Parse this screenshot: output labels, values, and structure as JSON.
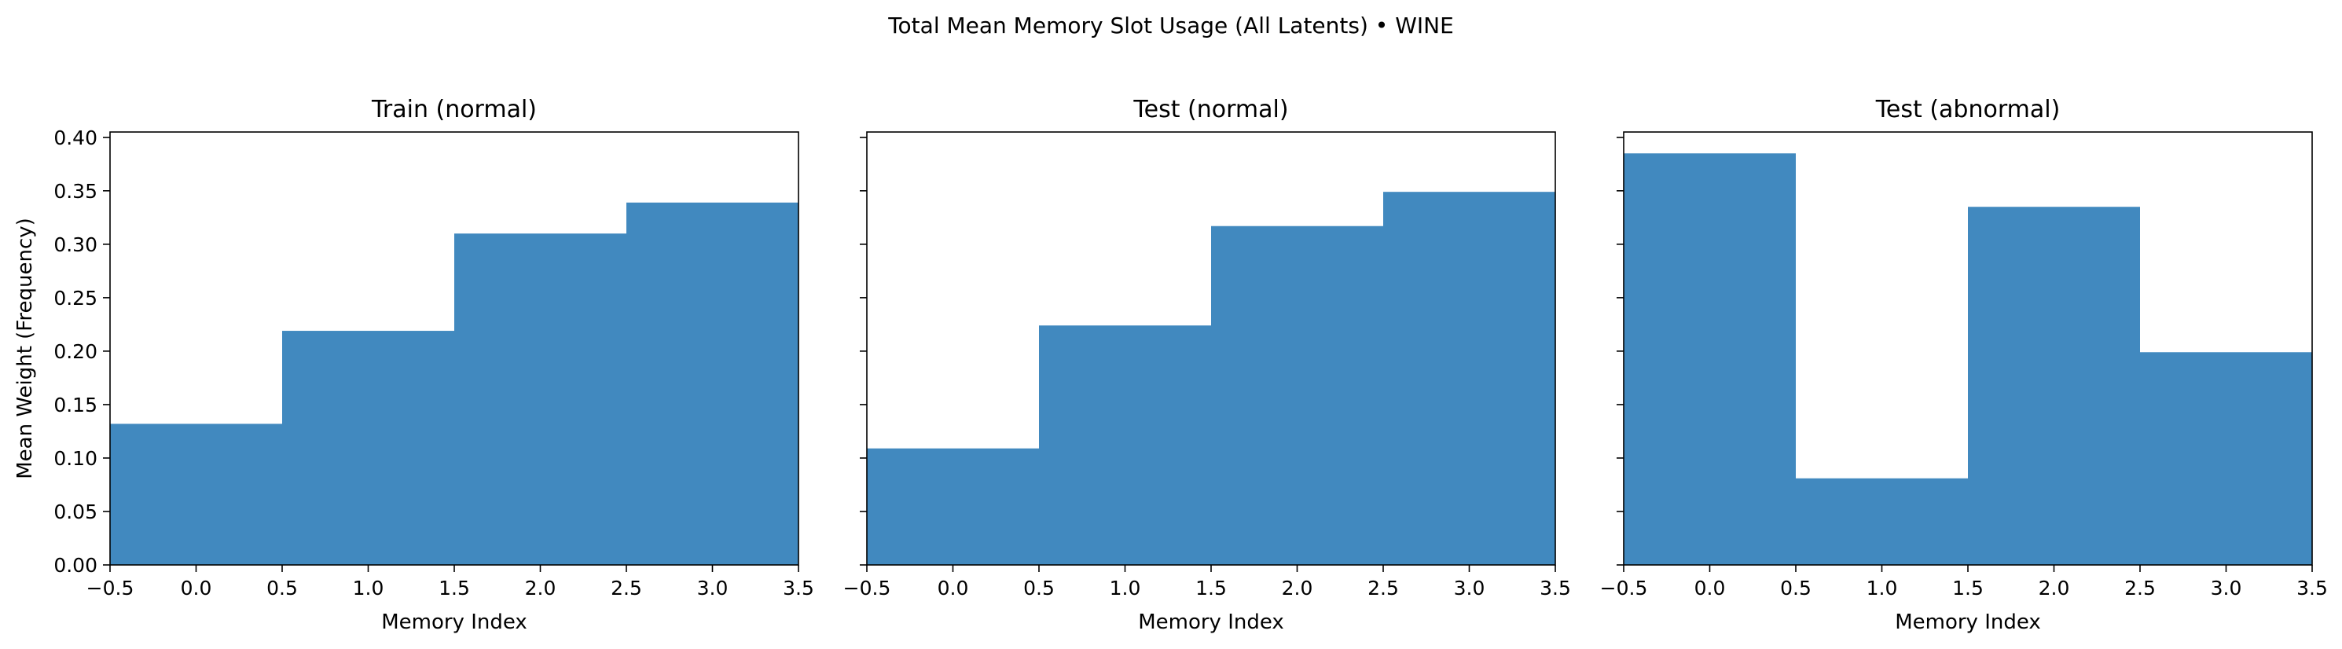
{
  "suptitle": "Total Mean Memory Slot Usage (All Latents) • WINE",
  "bar_color": "#4189bf",
  "chart_data": [
    {
      "type": "bar",
      "title": "Train (normal)",
      "xlabel": "Memory Index",
      "ylabel": "Mean Weight (Frequency)",
      "categories": [
        0,
        1,
        2,
        3
      ],
      "values": [
        0.132,
        0.219,
        0.31,
        0.339
      ],
      "xlim": [
        -0.5,
        3.5
      ],
      "ylim": [
        0,
        0.405
      ],
      "xticks": [
        "−0.5",
        "0.0",
        "0.5",
        "1.0",
        "1.5",
        "2.0",
        "2.5",
        "3.0",
        "3.5"
      ],
      "yticks": [
        "0.00",
        "0.05",
        "0.10",
        "0.15",
        "0.20",
        "0.25",
        "0.30",
        "0.35",
        "0.40"
      ],
      "show_ytick_labels": true
    },
    {
      "type": "bar",
      "title": "Test (normal)",
      "xlabel": "Memory Index",
      "ylabel": "",
      "categories": [
        0,
        1,
        2,
        3
      ],
      "values": [
        0.109,
        0.224,
        0.317,
        0.349
      ],
      "xlim": [
        -0.5,
        3.5
      ],
      "ylim": [
        0,
        0.405
      ],
      "xticks": [
        "−0.5",
        "0.0",
        "0.5",
        "1.0",
        "1.5",
        "2.0",
        "2.5",
        "3.0",
        "3.5"
      ],
      "yticks": [
        "0.00",
        "0.05",
        "0.10",
        "0.15",
        "0.20",
        "0.25",
        "0.30",
        "0.35",
        "0.40"
      ],
      "show_ytick_labels": false
    },
    {
      "type": "bar",
      "title": "Test (abnormal)",
      "xlabel": "Memory Index",
      "ylabel": "",
      "categories": [
        0,
        1,
        2,
        3
      ],
      "values": [
        0.385,
        0.081,
        0.335,
        0.199
      ],
      "xlim": [
        -0.5,
        3.5
      ],
      "ylim": [
        0,
        0.405
      ],
      "xticks": [
        "−0.5",
        "0.0",
        "0.5",
        "1.0",
        "1.5",
        "2.0",
        "2.5",
        "3.0",
        "3.5"
      ],
      "yticks": [
        "0.00",
        "0.05",
        "0.10",
        "0.15",
        "0.20",
        "0.25",
        "0.30",
        "0.35",
        "0.40"
      ],
      "show_ytick_labels": false
    }
  ]
}
